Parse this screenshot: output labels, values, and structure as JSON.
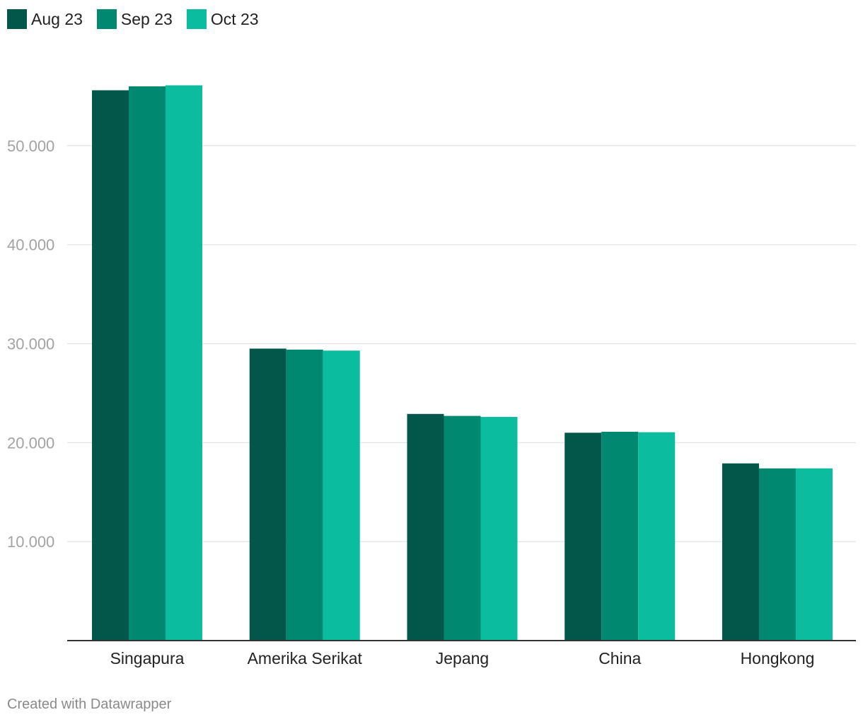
{
  "chart_data": {
    "type": "bar",
    "categories": [
      "Singapura",
      "Amerika Serikat",
      "Jepang",
      "China",
      "Hongkong"
    ],
    "series": [
      {
        "name": "Aug 23",
        "color": "#02574a",
        "values": [
          55600,
          29500,
          22900,
          21000,
          17900
        ]
      },
      {
        "name": "Sep 23",
        "color": "#018870",
        "values": [
          56000,
          29400,
          22700,
          21100,
          17400
        ]
      },
      {
        "name": "Oct 23",
        "color": "#0bbd9e",
        "values": [
          56100,
          29300,
          22600,
          21050,
          17400
        ]
      }
    ],
    "y_ticks": [
      {
        "value": 10000,
        "label": "10.000"
      },
      {
        "value": 20000,
        "label": "20.000"
      },
      {
        "value": 30000,
        "label": "30.000"
      },
      {
        "value": 40000,
        "label": "40.000"
      },
      {
        "value": 50000,
        "label": "50.000"
      }
    ],
    "ylim": [
      0,
      60000
    ],
    "grid": true,
    "legend_position": "top-left",
    "title": "",
    "xlabel": "",
    "ylabel": ""
  },
  "footer": {
    "credit": "Created with Datawrapper"
  },
  "colors": {
    "gridline": "#e0e0e0",
    "baseline": "#333333",
    "tick_label": "#a3a3a3",
    "category_label": "#222222"
  }
}
